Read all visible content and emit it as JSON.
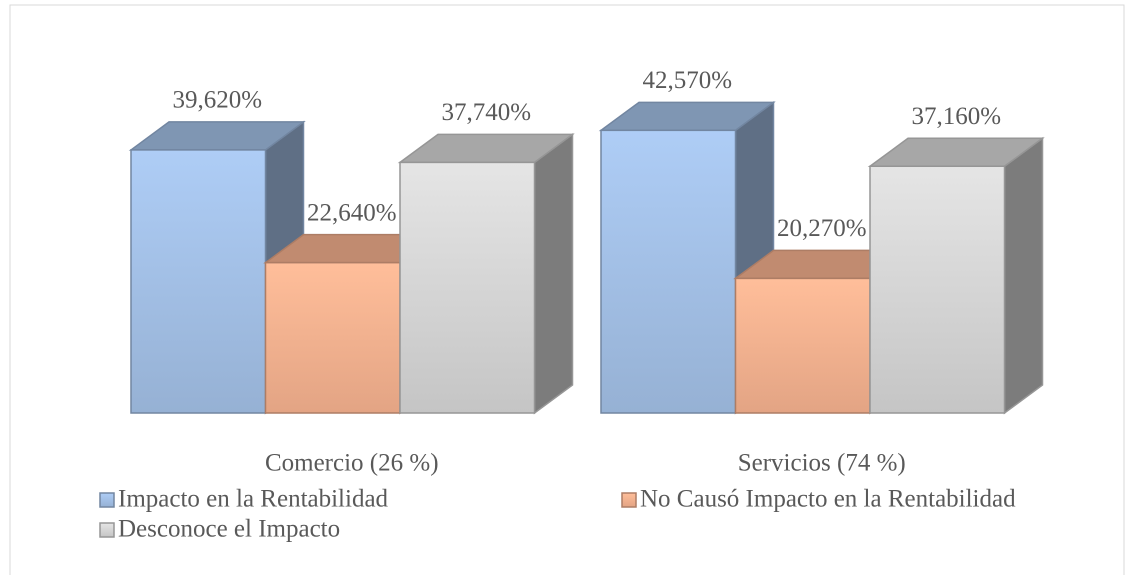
{
  "chart_data": {
    "type": "bar3d",
    "categories": [
      "Comercio (26 %)",
      "Servicios (74 %)"
    ],
    "series": [
      {
        "name": "Impacto en la Rentabilidad",
        "color": "#a3c0e6",
        "values": [
          39.62,
          42.57
        ],
        "value_labels": [
          "39,620%",
          "42,570%"
        ]
      },
      {
        "name": "No Causó Impacto en la Rentabilidad",
        "color": "#f7b290",
        "values": [
          22.64,
          20.27
        ],
        "value_labels": [
          "22,640%",
          "20,270%"
        ]
      },
      {
        "name": "Desconoce el Impacto",
        "color": "#d6d6d6",
        "values": [
          37.74,
          37.16
        ],
        "value_labels": [
          "37,740%",
          "37,160%"
        ]
      }
    ],
    "legend": "bottom"
  }
}
